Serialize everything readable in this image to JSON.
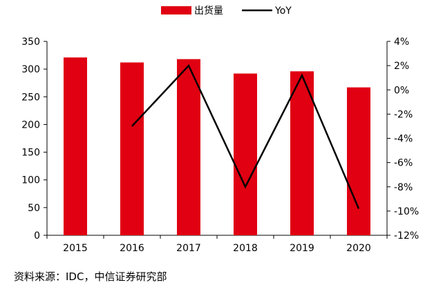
{
  "chart_data": {
    "type": "bar",
    "categories": [
      "2015",
      "2016",
      "2017",
      "2018",
      "2019",
      "2020"
    ],
    "series": [
      {
        "name": "出货量",
        "type": "bar",
        "axis": "left",
        "color": "#e00012",
        "values": [
          321,
          312,
          318,
          292,
          296,
          267
        ]
      },
      {
        "name": "YoY",
        "type": "line",
        "axis": "right",
        "color": "#000000",
        "values": [
          null,
          -3.0,
          2.0,
          -8.0,
          1.2,
          -9.8
        ]
      }
    ],
    "y_left": {
      "min": 0,
      "max": 350,
      "step": 50,
      "ticks": [
        "0",
        "50",
        "100",
        "150",
        "200",
        "250",
        "300",
        "350"
      ]
    },
    "y_right": {
      "min": -12,
      "max": 4,
      "step": 2,
      "ticks": [
        "-12%",
        "-10%",
        "-8%",
        "-6%",
        "-4%",
        "-2%",
        "0%",
        "2%",
        "4%"
      ]
    },
    "legend_position": "top",
    "grid": false
  },
  "source_note": "资料来源：IDC，中信证券研究部"
}
